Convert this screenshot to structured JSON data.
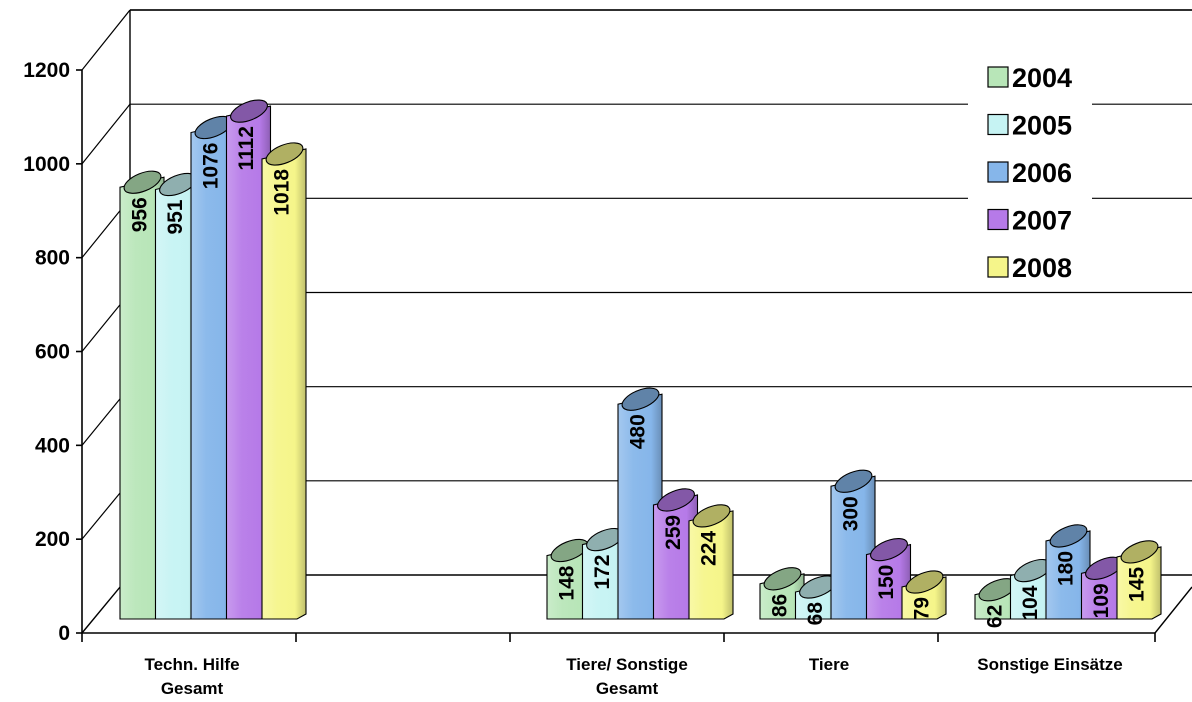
{
  "chart_data": {
    "type": "bar",
    "style": "3d-cylinder",
    "categories": [
      [
        "Techn. Hilfe",
        "Gesamt"
      ],
      [
        "Tiere/ Sonstige",
        "Gesamt"
      ],
      [
        "Tiere"
      ],
      [
        "Sonstige  Einsätze"
      ]
    ],
    "series": [
      {
        "name": "2004",
        "values": [
          956,
          148,
          86,
          62
        ],
        "color": "#b8e6b8"
      },
      {
        "name": "2005",
        "values": [
          951,
          172,
          68,
          104
        ],
        "color": "#c6f3f3"
      },
      {
        "name": "2006",
        "values": [
          1076,
          480,
          300,
          180
        ],
        "color": "#86b6ea"
      },
      {
        "name": "2007",
        "values": [
          1112,
          259,
          150,
          109
        ],
        "color": "#b67ae8"
      },
      {
        "name": "2008",
        "values": [
          1018,
          224,
          79,
          145
        ],
        "color": "#f5f58a"
      }
    ],
    "ylim": [
      0,
      1200
    ],
    "yticks": [
      0,
      200,
      400,
      600,
      800,
      1000,
      1200
    ],
    "grid": true,
    "legend": "top-right",
    "data_labels": true
  }
}
